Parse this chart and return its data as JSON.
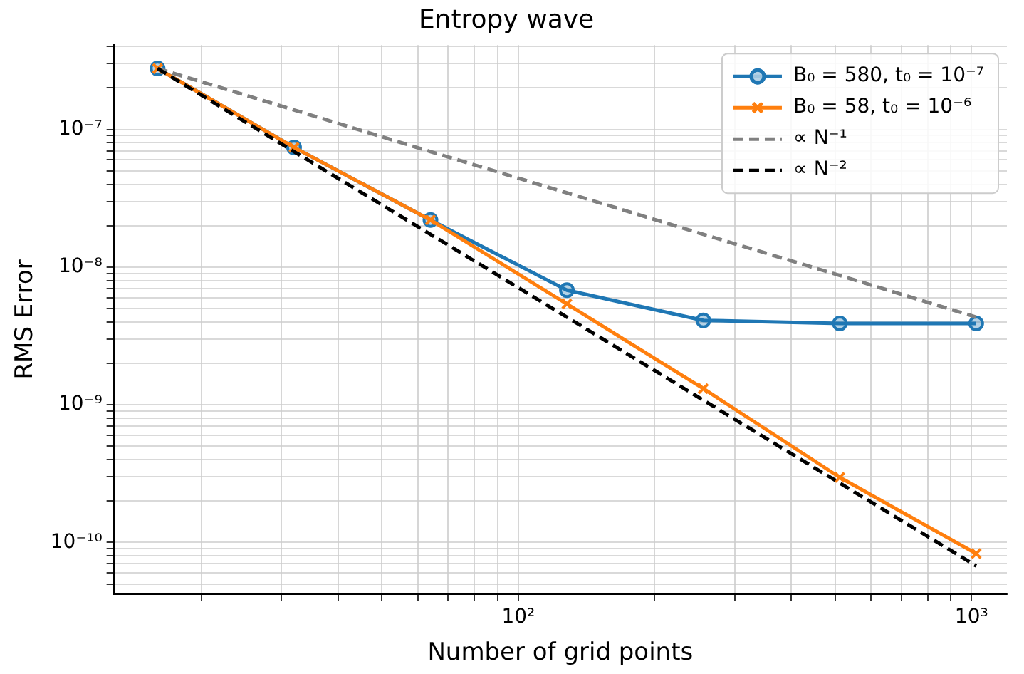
{
  "chart_data": {
    "type": "line",
    "title": "Entropy wave",
    "xlabel": "Number of grid points",
    "ylabel": "RMS Error",
    "log": "xy",
    "grid": true,
    "legend": "top right",
    "xlim": [
      12.8,
      1197
    ],
    "ylim": [
      4.23e-11,
      4.1e-07
    ],
    "xticks": [
      {
        "value": 20,
        "label": null
      },
      {
        "value": 30,
        "label": null
      },
      {
        "value": 40,
        "label": null
      },
      {
        "value": 50,
        "label": null
      },
      {
        "value": 60,
        "label": null
      },
      {
        "value": 70,
        "label": null
      },
      {
        "value": 80,
        "label": null
      },
      {
        "value": 90,
        "label": null
      },
      {
        "value": 100,
        "label": "10²"
      },
      {
        "value": 200,
        "label": null
      },
      {
        "value": 300,
        "label": null
      },
      {
        "value": 400,
        "label": null
      },
      {
        "value": 500,
        "label": null
      },
      {
        "value": 600,
        "label": null
      },
      {
        "value": 700,
        "label": null
      },
      {
        "value": 800,
        "label": null
      },
      {
        "value": 900,
        "label": null
      },
      {
        "value": 1000,
        "label": "10³"
      }
    ],
    "yticks": [
      {
        "value": 5e-11,
        "label": null
      },
      {
        "value": 6e-11,
        "label": null
      },
      {
        "value": 7e-11,
        "label": null
      },
      {
        "value": 8e-11,
        "label": null
      },
      {
        "value": 9e-11,
        "label": null
      },
      {
        "value": 1e-10,
        "label": "10⁻¹⁰"
      },
      {
        "value": 2e-10,
        "label": null
      },
      {
        "value": 3e-10,
        "label": null
      },
      {
        "value": 4e-10,
        "label": null
      },
      {
        "value": 5e-10,
        "label": null
      },
      {
        "value": 6e-10,
        "label": null
      },
      {
        "value": 7e-10,
        "label": null
      },
      {
        "value": 8e-10,
        "label": null
      },
      {
        "value": 9e-10,
        "label": null
      },
      {
        "value": 1e-09,
        "label": "10⁻⁹"
      },
      {
        "value": 2e-09,
        "label": null
      },
      {
        "value": 3e-09,
        "label": null
      },
      {
        "value": 4e-09,
        "label": null
      },
      {
        "value": 5e-09,
        "label": null
      },
      {
        "value": 6e-09,
        "label": null
      },
      {
        "value": 7e-09,
        "label": null
      },
      {
        "value": 8e-09,
        "label": null
      },
      {
        "value": 9e-09,
        "label": null
      },
      {
        "value": 1e-08,
        "label": "10⁻⁸"
      },
      {
        "value": 2e-08,
        "label": null
      },
      {
        "value": 3e-08,
        "label": null
      },
      {
        "value": 4e-08,
        "label": null
      },
      {
        "value": 5e-08,
        "label": null
      },
      {
        "value": 6e-08,
        "label": null
      },
      {
        "value": 7e-08,
        "label": null
      },
      {
        "value": 8e-08,
        "label": null
      },
      {
        "value": 9e-08,
        "label": null
      },
      {
        "value": 1e-07,
        "label": "10⁻⁷"
      },
      {
        "value": 2e-07,
        "label": null
      },
      {
        "value": 3e-07,
        "label": null
      },
      {
        "value": 4e-07,
        "label": null
      }
    ],
    "x": [
      16,
      32,
      64,
      128,
      256,
      512,
      1024
    ],
    "series": [
      {
        "name": "B₀ = 580, t₀ = 10⁻⁷",
        "color": "#1f77b4",
        "marker": "circle",
        "line_style": "solid",
        "values": [
          2.77e-07,
          7.4e-08,
          2.2e-08,
          6.8e-09,
          4.1e-09,
          3.9e-09,
          3.9e-09
        ]
      },
      {
        "name": "B₀ = 58, t₀ = 10⁻⁶",
        "color": "#ff7f0e",
        "marker": "cross",
        "line_style": "solid",
        "values": [
          2.77e-07,
          7.4e-08,
          2.2e-08,
          5.4e-09,
          1.31e-09,
          2.97e-10,
          8.3e-11
        ]
      },
      {
        "name": "∝ N⁻¹",
        "color": "#808080",
        "marker": "none",
        "line_style": "dashed",
        "values": [
          2.77e-07,
          1.385e-07,
          6.9e-08,
          3.46e-08,
          1.73e-08,
          8.7e-09,
          4.33e-09
        ]
      },
      {
        "name": "∝ N⁻²",
        "color": "#000000",
        "marker": "none",
        "line_style": "dashed",
        "values": [
          2.77e-07,
          6.9e-08,
          1.73e-08,
          4.33e-09,
          1.08e-09,
          2.7e-10,
          6.76e-11
        ]
      }
    ]
  }
}
